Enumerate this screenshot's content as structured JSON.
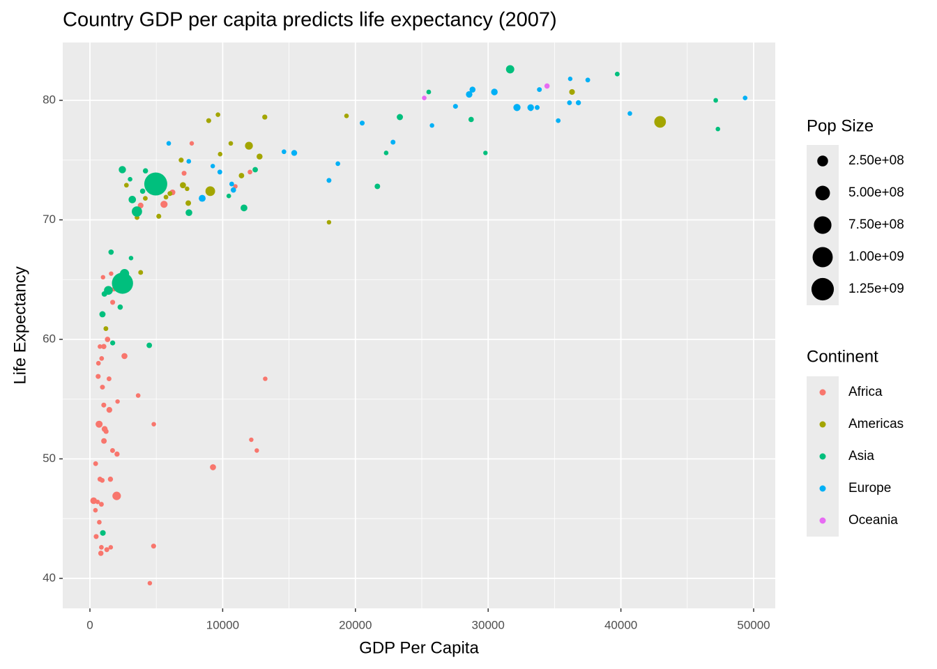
{
  "chart_data": {
    "type": "scatter",
    "title": "Country GDP per capita predicts life expectancy (2007)",
    "x_label": "GDP Per Capita",
    "y_label": "Life Expectancy",
    "xlim": [
      -2048,
      51628
    ],
    "ylim": [
      37.49,
      84.84
    ],
    "xticks": [
      0,
      10000,
      20000,
      30000,
      40000,
      50000
    ],
    "yticks": [
      40,
      50,
      60,
      70,
      80
    ],
    "grid": true,
    "minor_grid": true,
    "legend_position": "right",
    "size_legend": {
      "title": "Pop Size",
      "values": [
        {
          "value": 250000000,
          "label": "2.50e+08"
        },
        {
          "value": 500000000,
          "label": "5.00e+08"
        },
        {
          "value": 750000000,
          "label": "7.50e+08"
        },
        {
          "value": 1000000000,
          "label": "1.00e+09"
        },
        {
          "value": 1250000000,
          "label": "1.25e+09"
        }
      ]
    },
    "color_legend_title": "Continent",
    "series": [
      {
        "name": "Africa",
        "color": "#F8766D",
        "x": [
          6223,
          4797,
          1441,
          12570,
          1217,
          430,
          2042,
          706,
          1704,
          986,
          278,
          3633,
          1545,
          2082,
          5581,
          12154,
          641,
          691,
          13206,
          753,
          1327,
          943,
          579,
          1463,
          1569,
          415,
          12057,
          1045,
          759,
          1043,
          1803,
          10957,
          3820,
          824,
          4811,
          620,
          2014,
          7670,
          863,
          1598,
          1712,
          863,
          926,
          9270,
          2602,
          4513,
          1107,
          883,
          7093,
          1056,
          1271,
          470
        ],
        "values": [
          72.3,
          42.7,
          56.7,
          50.7,
          52.3,
          49.6,
          50.4,
          44.7,
          50.7,
          65.2,
          46.5,
          55.3,
          48.3,
          54.8,
          71.3,
          51.6,
          58.0,
          52.9,
          56.7,
          59.4,
          60.0,
          56.0,
          46.4,
          54.1,
          42.6,
          45.7,
          74.0,
          59.4,
          48.3,
          54.5,
          64.2,
          72.8,
          71.2,
          42.1,
          52.9,
          56.9,
          46.9,
          76.4,
          46.2,
          65.5,
          63.1,
          42.6,
          48.2,
          49.3,
          58.6,
          39.6,
          52.5,
          58.4,
          73.9,
          51.5,
          42.4,
          43.5
        ],
        "sizes": [
          33300000,
          12400000,
          8100000,
          1600000,
          14300000,
          8400000,
          17700000,
          4400000,
          10200000,
          710000,
          64600000,
          3800000,
          18000000,
          500000,
          80300000,
          550000,
          4900000,
          76500000,
          1450000,
          1700000,
          22900000,
          9900000,
          1470000,
          35600000,
          2000000,
          3200000,
          6000000,
          19200000,
          13300000,
          12000000,
          3300000,
          1250000,
          33800000,
          20000000,
          2100000,
          12900000,
          135000000,
          800000,
          8900000,
          200000,
          12300000,
          6100000,
          9100000,
          44000000,
          42300000,
          1100000,
          38100000,
          5700000,
          10300000,
          29200000,
          11700000,
          12300000
        ]
      },
      {
        "name": "Americas",
        "color": "#A3A500",
        "x": [
          12779,
          3822,
          9066,
          36319,
          13172,
          7007,
          9645,
          8948,
          6025,
          6873,
          5728,
          5186,
          1202,
          3548,
          7321,
          11978,
          2749,
          9809,
          4173,
          7409,
          19329,
          18009,
          42952,
          10611,
          11416
        ],
        "values": [
          75.3,
          65.6,
          72.4,
          80.7,
          78.6,
          72.9,
          78.8,
          78.3,
          72.2,
          75.0,
          71.9,
          70.3,
          60.9,
          70.2,
          72.6,
          76.2,
          72.9,
          75.5,
          71.8,
          71.4,
          78.7,
          69.8,
          78.2,
          76.4,
          73.7
        ],
        "sizes": [
          40300000,
          9100000,
          190000000,
          33400000,
          16300000,
          44200000,
          4100000,
          11400000,
          9300000,
          13800000,
          6900000,
          12600000,
          8500000,
          7500000,
          2800000,
          108700000,
          5700000,
          3200000,
          6700000,
          28700000,
          3900000,
          1060000,
          301000000,
          3400000,
          26100000
        ]
      },
      {
        "name": "Asia",
        "color": "#00BF7D",
        "x": [
          975,
          29796,
          1391,
          1714,
          4959,
          39725,
          2452,
          3541,
          11606,
          4471,
          25523,
          31656,
          4519,
          1593,
          23348,
          47307,
          10461,
          12452,
          3096,
          944,
          1091,
          22316,
          2606,
          3190,
          21655,
          47143,
          3970,
          4185,
          28718,
          7458,
          2442,
          3025,
          2281
        ],
        "values": [
          43.8,
          75.6,
          64.1,
          59.7,
          73.0,
          82.2,
          64.7,
          70.7,
          71.0,
          59.5,
          80.7,
          82.6,
          72.5,
          67.3,
          78.6,
          77.6,
          72.0,
          74.2,
          66.8,
          62.1,
          63.8,
          75.6,
          65.5,
          71.7,
          72.8,
          80.0,
          72.4,
          74.1,
          78.4,
          70.6,
          74.2,
          73.4,
          62.7
        ],
        "sizes": [
          31900000,
          700000,
          150000000,
          14100000,
          1318700000,
          6980000,
          1110000000,
          223500000,
          69500000,
          27500000,
          6400000,
          127500000,
          6050000,
          23300000,
          49000000,
          2500000,
          3900000,
          24800000,
          2900000,
          47800000,
          28900000,
          3200000,
          169300000,
          91100000,
          27600000,
          4600000,
          20400000,
          19300000,
          23200000,
          65100000,
          85300000,
          4000000,
          22200000
        ]
      },
      {
        "name": "Europe",
        "color": "#00B0F6",
        "x": [
          5937,
          36126,
          33693,
          7446,
          10681,
          14619,
          22833,
          35278,
          33207,
          30470,
          32170,
          27538,
          18009,
          36181,
          40676,
          28570,
          9254,
          36798,
          49357,
          15390,
          20510,
          10808,
          9787,
          18678,
          25768,
          28821,
          33860,
          37506,
          8458,
          33203
        ],
        "values": [
          76.4,
          79.8,
          79.4,
          74.9,
          73.0,
          75.7,
          76.5,
          78.3,
          79.3,
          80.7,
          79.4,
          79.5,
          73.3,
          81.8,
          78.9,
          80.5,
          74.5,
          79.8,
          80.2,
          75.6,
          78.1,
          72.5,
          74.0,
          74.7,
          77.9,
          80.9,
          80.9,
          81.7,
          71.8,
          79.4
        ],
        "sizes": [
          3600000,
          8200000,
          10400000,
          4600000,
          7300000,
          4500000,
          10200000,
          5500000,
          5200000,
          61100000,
          82400000,
          10700000,
          10000000,
          300000,
          4100000,
          58100000,
          680000,
          16600000,
          4600000,
          38500000,
          10600000,
          22300000,
          10200000,
          5400000,
          2000000,
          40400000,
          9000000,
          7600000,
          71200000,
          60800000
        ]
      },
      {
        "name": "Oceania",
        "color": "#E76BF3",
        "x": [
          34435,
          25185
        ],
        "values": [
          81.2,
          80.2
        ],
        "sizes": [
          20400000,
          4100000
        ]
      }
    ]
  }
}
